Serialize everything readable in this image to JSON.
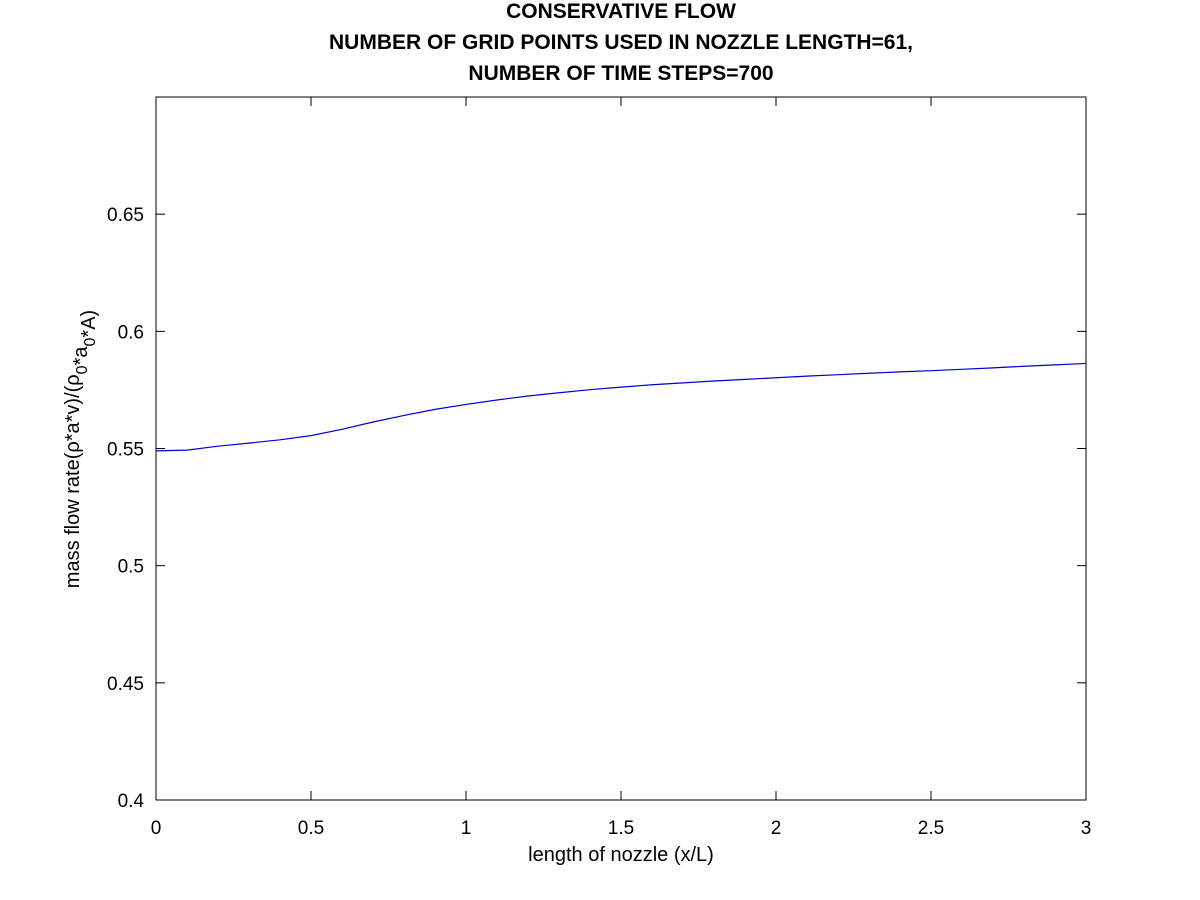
{
  "chart_data": {
    "type": "line",
    "title": [
      "CONSERVATIVE FLOW",
      "NUMBER OF GRID POINTS USED IN NOZZLE LENGTH=61,",
      "NUMBER OF TIME STEPS=700"
    ],
    "xlabel": "length of nozzle (x/L)",
    "ylabel": "mass flow rate(ρ*a*v)/(ρ0*a0*A)",
    "xlim": [
      0,
      3
    ],
    "ylim": [
      0.4,
      0.7
    ],
    "xticks": [
      0,
      0.5,
      1,
      1.5,
      2,
      2.5,
      3
    ],
    "xtick_labels": [
      "0",
      "0.5",
      "1",
      "1.5",
      "2",
      "2.5",
      "3"
    ],
    "yticks": [
      0.4,
      0.45,
      0.5,
      0.55,
      0.6,
      0.65
    ],
    "ytick_labels": [
      "0.4",
      "0.45",
      "0.5",
      "0.55",
      "0.6",
      "0.65"
    ],
    "grid": false,
    "box": true,
    "series": [
      {
        "color": "#0000cc",
        "x": [
          0,
          0.1,
          0.2,
          0.3,
          0.4,
          0.5,
          0.6,
          0.7,
          0.8,
          0.9,
          1.0,
          1.1,
          1.2,
          1.3,
          1.4,
          1.5,
          1.6,
          1.7,
          1.8,
          1.9,
          2.0,
          2.1,
          2.2,
          2.3,
          2.4,
          2.5,
          2.6,
          2.7,
          2.8,
          2.9,
          3.0
        ],
        "y": [
          0.549,
          0.5493,
          0.551,
          0.5523,
          0.5537,
          0.5555,
          0.5582,
          0.5613,
          0.5641,
          0.5667,
          0.5688,
          0.5707,
          0.5724,
          0.5738,
          0.5751,
          0.5762,
          0.5772,
          0.578,
          0.5788,
          0.5795,
          0.5802,
          0.5809,
          0.5815,
          0.5821,
          0.5827,
          0.5832,
          0.5838,
          0.5844,
          0.5851,
          0.5857,
          0.5863
        ]
      }
    ]
  }
}
